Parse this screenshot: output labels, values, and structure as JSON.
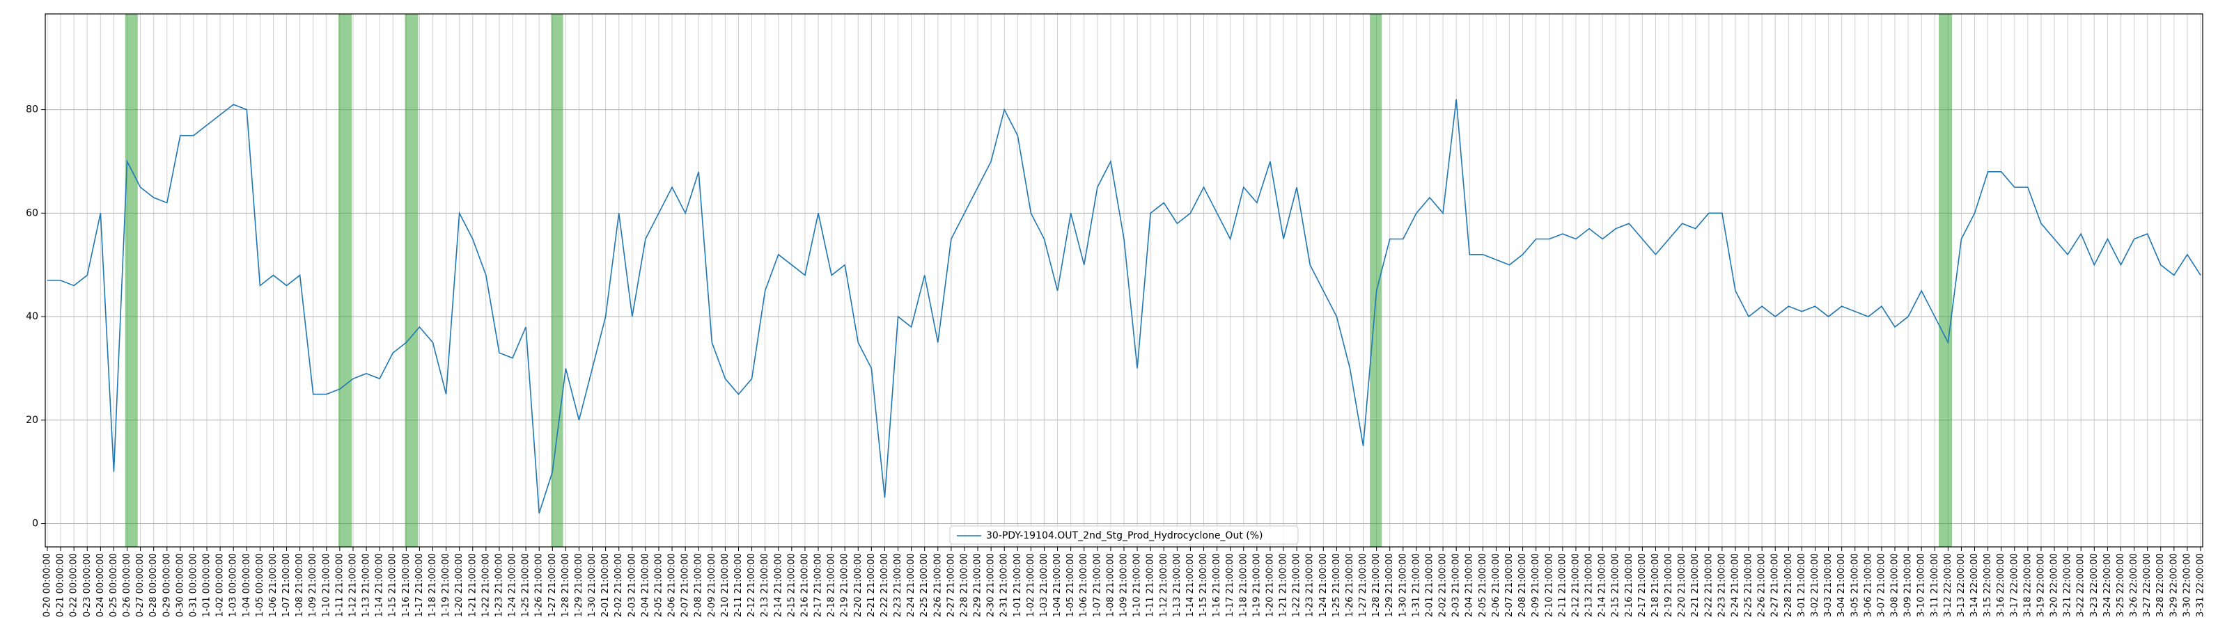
{
  "chart_data": {
    "type": "line",
    "categories": [
      "0-20 00:00:00",
      "0-21 00:00:00",
      "0-22 00:00:00",
      "0-23 00:00:00",
      "0-24 00:00:00",
      "0-25 00:00:00",
      "0-26 00:00:00",
      "0-27 00:00:00",
      "0-28 00:00:00",
      "0-29 00:00:00",
      "0-30 00:00:00",
      "0-31 00:00:00",
      "1-01 00:00:00",
      "1-02 00:00:00",
      "1-03 00:00:00",
      "1-04 00:00:00",
      "1-05 00:00:00",
      "1-06 21:00:00",
      "1-07 21:00:00",
      "1-08 21:00:00",
      "1-09 21:00:00",
      "1-10 21:00:00",
      "1-11 21:00:00",
      "1-12 21:00:00",
      "1-13 21:00:00",
      "1-14 21:00:00",
      "1-15 21:00:00",
      "1-16 21:00:00",
      "1-17 21:00:00",
      "1-18 21:00:00",
      "1-19 21:00:00",
      "1-20 21:00:00",
      "1-21 21:00:00",
      "1-22 21:00:00",
      "1-23 21:00:00",
      "1-24 21:00:00",
      "1-25 21:00:00",
      "1-26 21:00:00",
      "1-27 21:00:00",
      "1-28 21:00:00",
      "1-29 21:00:00",
      "1-30 21:00:00",
      "2-01 21:00:00",
      "2-02 21:00:00",
      "2-03 21:00:00",
      "2-04 21:00:00",
      "2-05 21:00:00",
      "2-06 21:00:00",
      "2-07 21:00:00",
      "2-08 21:00:00",
      "2-09 21:00:00",
      "2-10 21:00:00",
      "2-11 21:00:00",
      "2-12 21:00:00",
      "2-13 21:00:00",
      "2-14 21:00:00",
      "2-15 21:00:00",
      "2-16 21:00:00",
      "2-17 21:00:00",
      "2-18 21:00:00",
      "2-19 21:00:00",
      "2-20 21:00:00",
      "2-21 21:00:00",
      "2-22 21:00:00",
      "2-23 21:00:00",
      "2-24 21:00:00",
      "2-25 21:00:00",
      "2-26 21:00:00",
      "2-27 21:00:00",
      "2-28 21:00:00",
      "2-29 21:00:00",
      "2-30 21:00:00",
      "2-31 21:00:00",
      "1-01 21:00:00",
      "1-02 21:00:00",
      "1-03 21:00:00",
      "1-04 21:00:00",
      "1-05 21:00:00",
      "1-06 21:00:00",
      "1-07 21:00:00",
      "1-08 21:00:00",
      "1-09 21:00:00",
      "1-10 21:00:00",
      "1-11 21:00:00",
      "1-12 21:00:00",
      "1-13 21:00:00",
      "1-14 21:00:00",
      "1-15 21:00:00",
      "1-16 21:00:00",
      "1-17 21:00:00",
      "1-18 21:00:00",
      "1-19 21:00:00",
      "1-20 21:00:00",
      "1-21 21:00:00",
      "1-22 21:00:00",
      "1-23 21:00:00",
      "1-24 21:00:00",
      "1-25 21:00:00",
      "1-26 21:00:00",
      "1-27 21:00:00",
      "1-28 21:00:00",
      "1-29 21:00:00",
      "1-30 21:00:00",
      "1-31 21:00:00",
      "2-01 21:00:00",
      "2-02 21:00:00",
      "2-03 21:00:00",
      "2-04 21:00:00",
      "2-05 21:00:00",
      "2-06 21:00:00",
      "2-07 21:00:00",
      "2-08 21:00:00",
      "2-09 21:00:00",
      "2-10 21:00:00",
      "2-11 21:00:00",
      "2-12 21:00:00",
      "2-13 21:00:00",
      "2-14 21:00:00",
      "2-15 21:00:00",
      "2-16 21:00:00",
      "2-17 21:00:00",
      "2-18 21:00:00",
      "2-19 21:00:00",
      "2-20 21:00:00",
      "2-21 21:00:00",
      "2-22 21:00:00",
      "2-23 21:00:00",
      "2-24 21:00:00",
      "2-25 21:00:00",
      "2-26 21:00:00",
      "2-27 21:00:00",
      "2-28 21:00:00",
      "3-01 21:00:00",
      "3-02 21:00:00",
      "3-03 21:00:00",
      "3-04 21:00:00",
      "3-05 21:00:00",
      "3-06 21:00:00",
      "3-07 21:00:00",
      "3-08 21:00:00",
      "3-09 21:00:00",
      "3-10 21:00:00",
      "3-11 21:00:00",
      "3-12 22:00:00",
      "3-13 22:00:00",
      "3-14 22:00:00",
      "3-15 22:00:00",
      "3-16 22:00:00",
      "3-17 22:00:00",
      "3-18 22:00:00",
      "3-19 22:00:00",
      "3-20 22:00:00",
      "3-21 22:00:00",
      "3-22 22:00:00",
      "3-23 22:00:00",
      "3-24 22:00:00",
      "3-25 22:00:00",
      "3-26 22:00:00",
      "3-27 22:00:00",
      "3-28 22:00:00",
      "3-29 22:00:00",
      "3-30 22:00:00",
      "3-31 22:00:00"
    ],
    "series": [
      {
        "name": "30-PDY-19104.OUT_2nd_Stg_Prod_Hydrocyclone_Out (%)",
        "color": "#1f77b4",
        "values": [
          47,
          47,
          46,
          48,
          60,
          10,
          70,
          65,
          63,
          62,
          75,
          75,
          77,
          79,
          81,
          80,
          46,
          48,
          46,
          48,
          25,
          25,
          26,
          28,
          29,
          28,
          33,
          35,
          38,
          35,
          25,
          60,
          55,
          48,
          33,
          32,
          38,
          2,
          10,
          30,
          20,
          30,
          40,
          60,
          40,
          55,
          60,
          65,
          60,
          68,
          35,
          28,
          25,
          28,
          45,
          52,
          50,
          48,
          60,
          48,
          50,
          35,
          30,
          5,
          40,
          38,
          48,
          35,
          55,
          60,
          65,
          70,
          80,
          75,
          60,
          55,
          45,
          60,
          50,
          65,
          70,
          55,
          30,
          60,
          62,
          58,
          60,
          65,
          60,
          55,
          65,
          62,
          70,
          55,
          65,
          50,
          45,
          40,
          30,
          15,
          45,
          55,
          55,
          60,
          63,
          60,
          82,
          52,
          52,
          51,
          50,
          52,
          55,
          55,
          56,
          55,
          57,
          55,
          57,
          58,
          55,
          52,
          55,
          58,
          57,
          60,
          60,
          45,
          40,
          42,
          40,
          42,
          41,
          42,
          40,
          42,
          41,
          40,
          42,
          38,
          40,
          45,
          40,
          35,
          55,
          60,
          68,
          68,
          65,
          65,
          58,
          55,
          52,
          56,
          50,
          55,
          50,
          55,
          56,
          50,
          48,
          52,
          48
        ]
      }
    ],
    "shaded_spans": [
      {
        "start": 5.85,
        "end": 6.8
      },
      {
        "start": 21.9,
        "end": 22.9
      },
      {
        "start": 26.9,
        "end": 27.9
      },
      {
        "start": 37.9,
        "end": 38.8
      },
      {
        "start": 99.5,
        "end": 100.4
      },
      {
        "start": 142.3,
        "end": 143.3
      }
    ],
    "span_color": "#2ca02c",
    "ylim": [
      -4.5,
      98.5
    ],
    "yticks": [
      0,
      20,
      40,
      60,
      80
    ],
    "grid": true,
    "legend": "lower center"
  }
}
